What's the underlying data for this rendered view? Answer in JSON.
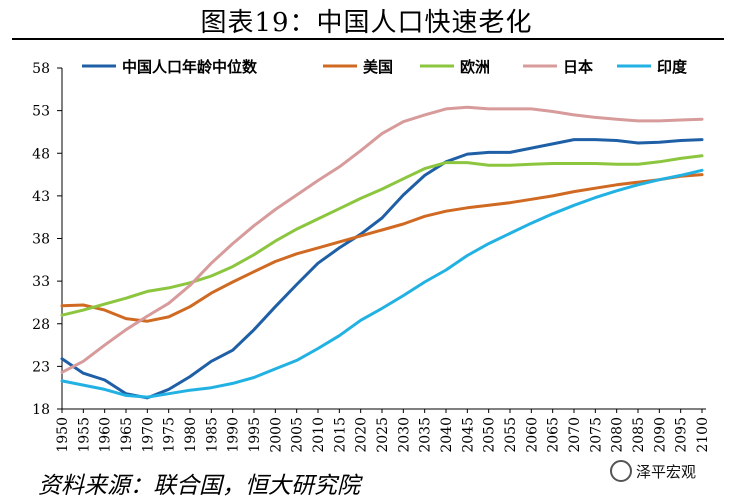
{
  "title": "图表19：中国人口快速老化",
  "source": "资料来源：联合国，恒大研究院",
  "watermark": "泽平宏观",
  "chart_data": {
    "type": "line",
    "title": "图表19：中国人口快速老化",
    "xlabel": "",
    "ylabel": "",
    "ylim": [
      18,
      58
    ],
    "yticks": [
      18,
      23,
      28,
      33,
      38,
      43,
      48,
      53,
      58
    ],
    "x": [
      1950,
      1955,
      1960,
      1965,
      1970,
      1975,
      1980,
      1985,
      1990,
      1995,
      2000,
      2005,
      2010,
      2015,
      2020,
      2025,
      2030,
      2035,
      2040,
      2045,
      2050,
      2055,
      2060,
      2065,
      2070,
      2075,
      2080,
      2085,
      2090,
      2095,
      2100
    ],
    "legend_position": "top",
    "grid": false,
    "series": [
      {
        "name": "中国人口年龄中位数",
        "color": "#1f5fa6",
        "values": [
          23.9,
          22.2,
          21.4,
          19.8,
          19.3,
          20.3,
          21.8,
          23.6,
          24.9,
          27.3,
          30.0,
          32.6,
          35.1,
          36.9,
          38.5,
          40.4,
          43.1,
          45.4,
          47.0,
          47.9,
          48.1,
          48.1,
          48.6,
          49.1,
          49.6,
          49.6,
          49.5,
          49.2,
          49.3,
          49.5,
          49.6
        ]
      },
      {
        "name": "美国",
        "color": "#d06a22",
        "values": [
          30.1,
          30.2,
          29.6,
          28.6,
          28.3,
          28.8,
          30.0,
          31.6,
          32.9,
          34.1,
          35.3,
          36.2,
          36.9,
          37.6,
          38.3,
          39.0,
          39.7,
          40.6,
          41.2,
          41.6,
          41.9,
          42.2,
          42.6,
          43.0,
          43.5,
          43.9,
          44.3,
          44.6,
          44.9,
          45.3,
          45.5
        ]
      },
      {
        "name": "欧洲",
        "color": "#8cc63f",
        "values": [
          29.0,
          29.6,
          30.3,
          31.0,
          31.8,
          32.2,
          32.8,
          33.6,
          34.7,
          36.1,
          37.7,
          39.1,
          40.3,
          41.5,
          42.7,
          43.8,
          45.0,
          46.2,
          46.9,
          46.9,
          46.6,
          46.6,
          46.7,
          46.8,
          46.8,
          46.8,
          46.7,
          46.7,
          47.0,
          47.4,
          47.7
        ]
      },
      {
        "name": "日本",
        "color": "#d79b9b",
        "values": [
          22.3,
          23.6,
          25.5,
          27.3,
          28.9,
          30.4,
          32.5,
          35.1,
          37.4,
          39.5,
          41.4,
          43.1,
          44.8,
          46.4,
          48.3,
          50.3,
          51.7,
          52.5,
          53.2,
          53.4,
          53.2,
          53.2,
          53.2,
          52.9,
          52.5,
          52.2,
          52.0,
          51.8,
          51.8,
          51.9,
          52.0
        ]
      },
      {
        "name": "印度",
        "color": "#21b1e3",
        "values": [
          21.3,
          20.8,
          20.3,
          19.6,
          19.4,
          19.8,
          20.2,
          20.5,
          21.0,
          21.7,
          22.7,
          23.7,
          25.1,
          26.6,
          28.4,
          29.8,
          31.3,
          32.9,
          34.3,
          36.0,
          37.4,
          38.6,
          39.8,
          40.9,
          41.9,
          42.8,
          43.6,
          44.3,
          44.9,
          45.4,
          46.0
        ]
      }
    ]
  }
}
